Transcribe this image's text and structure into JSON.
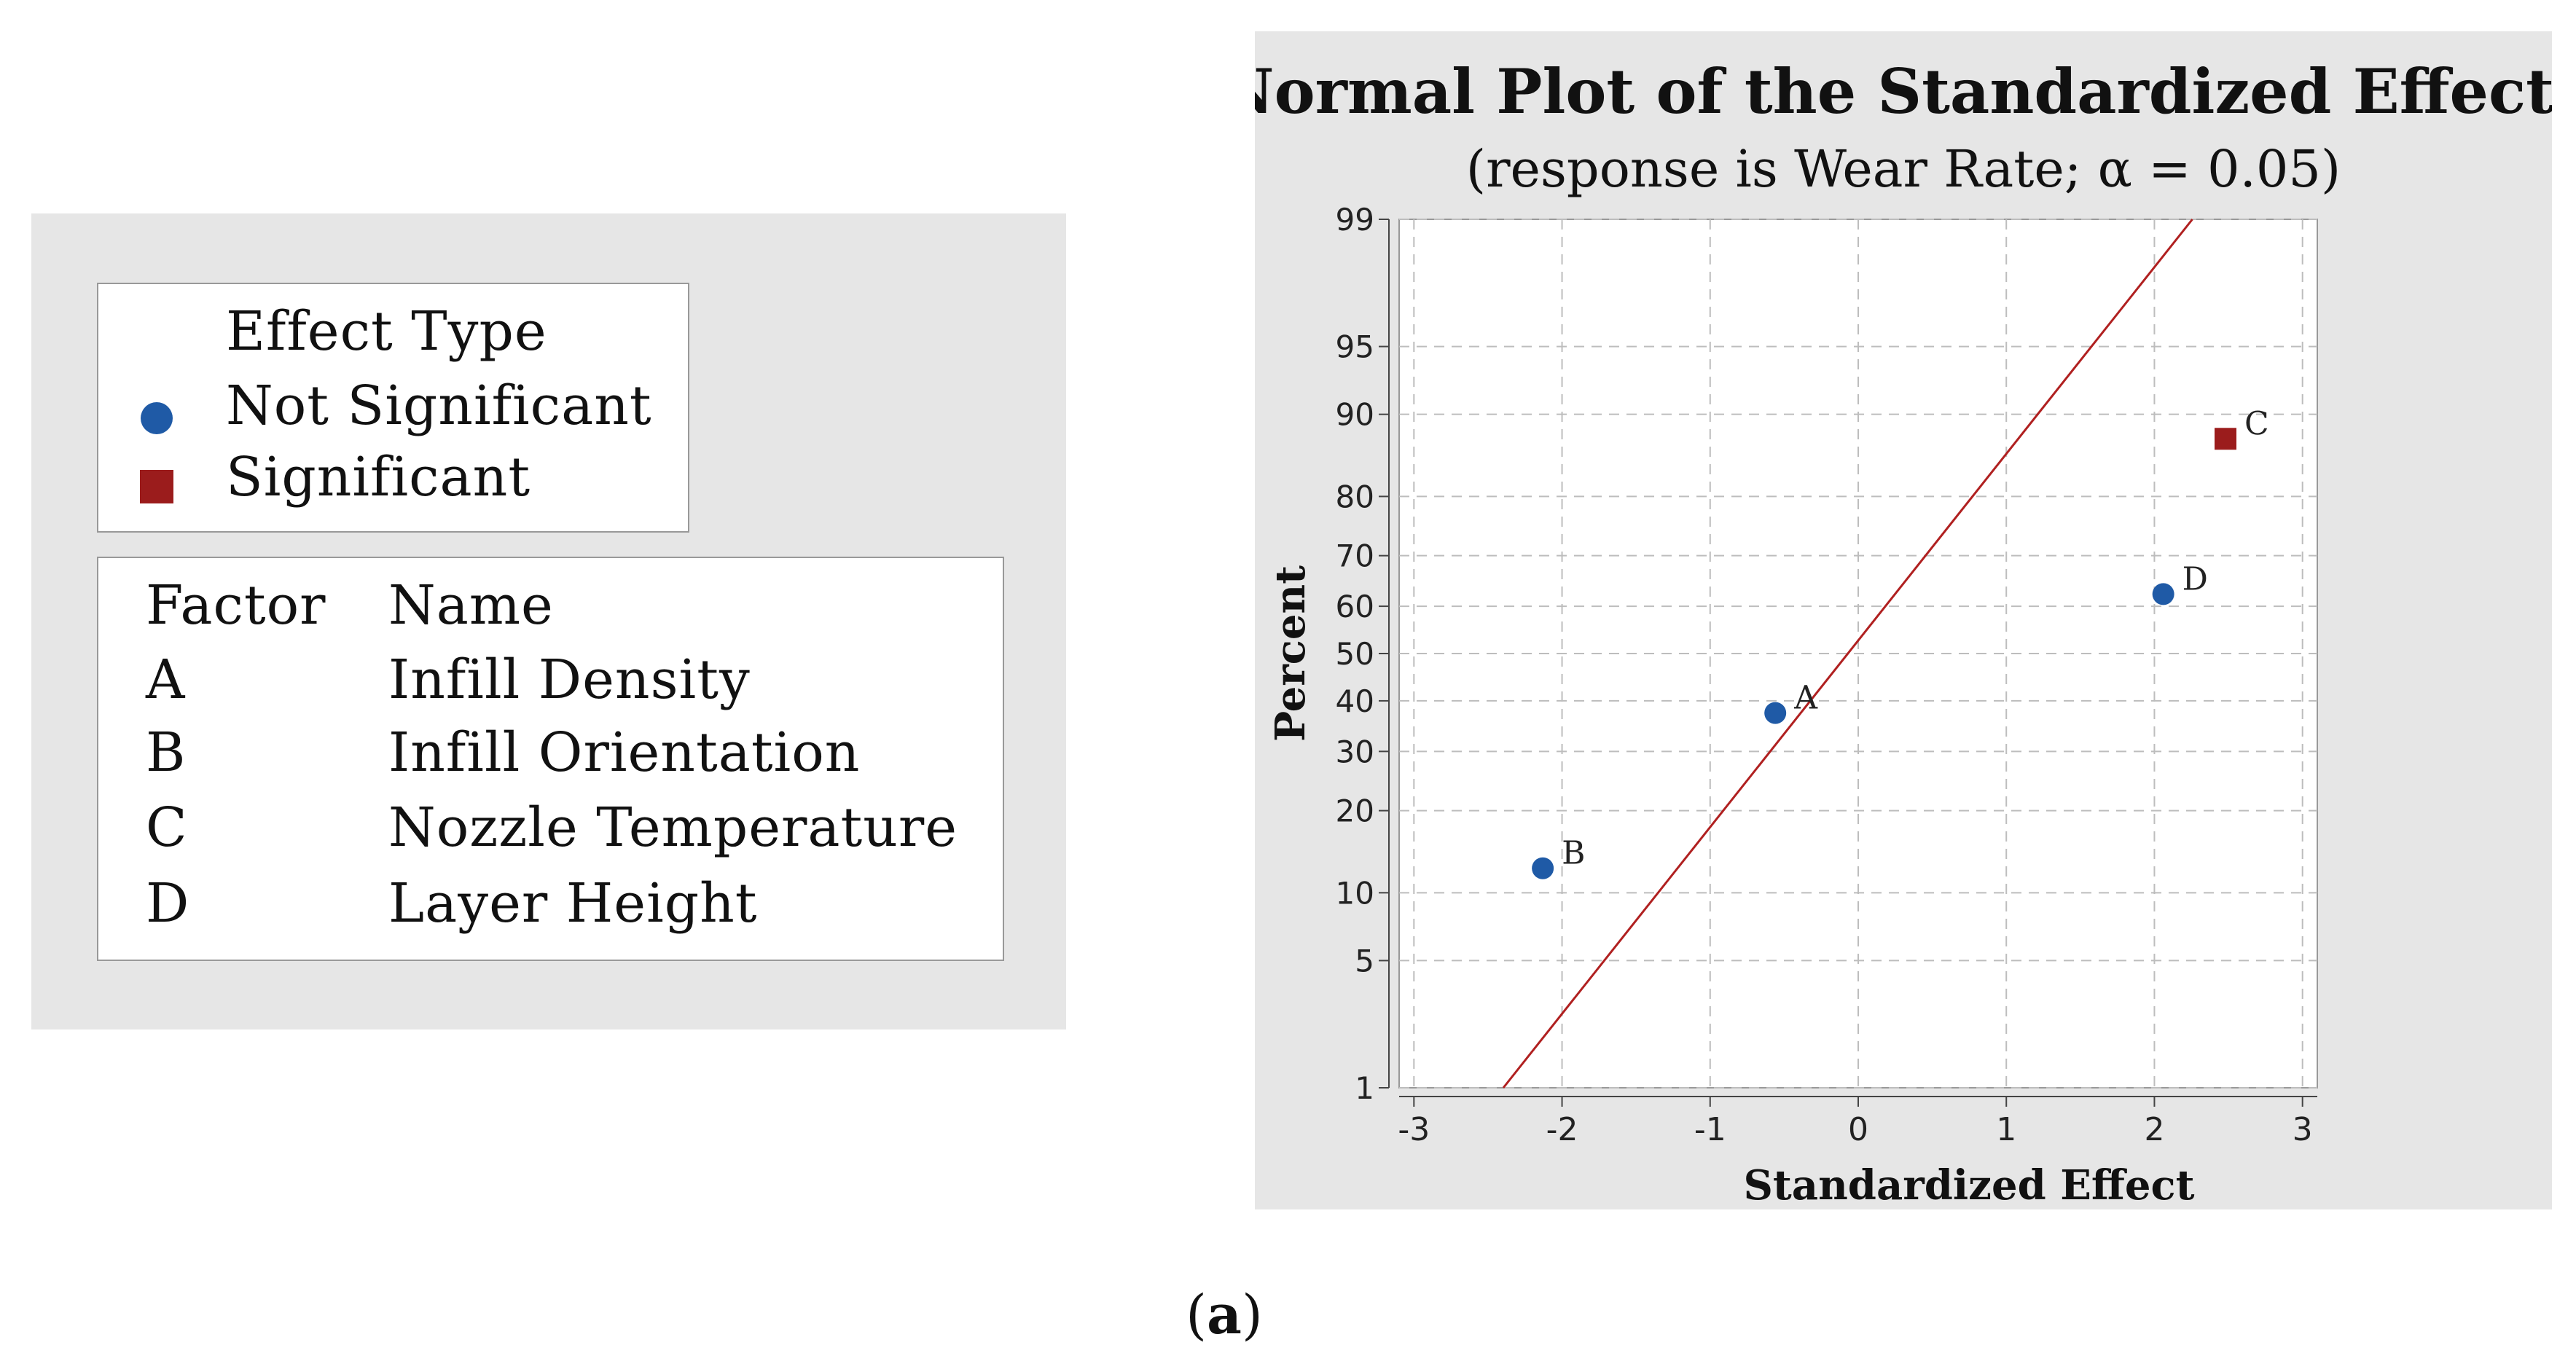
{
  "legend": {
    "effect_type_title": "Effect Type",
    "not_significant_label": "Not Significant",
    "significant_label": "Significant",
    "not_significant_color": "#1f5aa6",
    "significant_color": "#9b1c1c",
    "factor_header": "Factor",
    "name_header": "Name",
    "factors": [
      {
        "factor": "A",
        "name": "Infill Density"
      },
      {
        "factor": "B",
        "name": "Infill Orientation"
      },
      {
        "factor": "C",
        "name": "Nozzle Temperature"
      },
      {
        "factor": "D",
        "name": "Layer Height"
      }
    ]
  },
  "chart_data": {
    "type": "scatter",
    "title": "Normal Plot of the Standardized Effects",
    "subtitle": "(response is Wear Rate; α = 0.05)",
    "xlabel": "Standardized Effect",
    "ylabel": "Percent",
    "xlim": [
      -3.1,
      3.1
    ],
    "ylim_percent": [
      1,
      99
    ],
    "x_ticks": [
      "-3",
      "-2",
      "-1",
      "0",
      "1",
      "2",
      "3"
    ],
    "y_ticks": [
      "1",
      "5",
      "10",
      "20",
      "30",
      "40",
      "50",
      "60",
      "70",
      "80",
      "90",
      "95",
      "99"
    ],
    "grid": true,
    "points": [
      {
        "label": "A",
        "x": -0.56,
        "percent": 37.5,
        "type": "Not Significant"
      },
      {
        "label": "B",
        "x": -2.13,
        "percent": 12.5,
        "type": "Not Significant"
      },
      {
        "label": "C",
        "x": 2.48,
        "percent": 87.5,
        "type": "Significant"
      },
      {
        "label": "D",
        "x": 2.06,
        "percent": 62.5,
        "type": "Not Significant"
      }
    ],
    "reference_line": {
      "x_at_50_percent": -0.07,
      "slope_z_per_effect": 1.0
    },
    "line_color": "#b02020"
  },
  "caption": {
    "label": "a",
    "open": "(",
    "close": ")"
  }
}
